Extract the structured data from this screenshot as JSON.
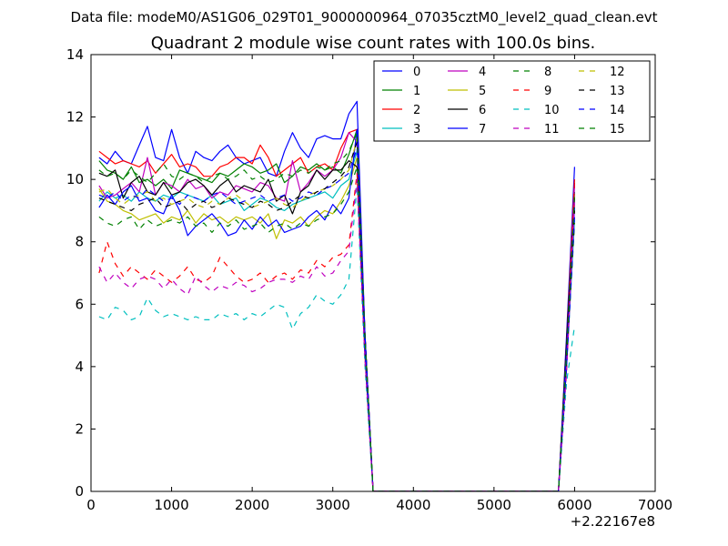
{
  "chart_data": {
    "type": "line",
    "suptitle": "Data file: modeM0/AS1G06_029T01_9000000964_07035cztM0_level2_quad_clean.evt",
    "title": "Quadrant 2 module wise count rates with 100.0s bins.",
    "xlabel": "",
    "ylabel": "",
    "x_offset_label": "+2.22167e8",
    "xlim": [
      0,
      7000
    ],
    "ylim": [
      0,
      14
    ],
    "xticks": [
      0,
      1000,
      2000,
      3000,
      4000,
      5000,
      6000,
      7000
    ],
    "yticks": [
      0,
      2,
      4,
      6,
      8,
      10,
      12,
      14
    ],
    "x_tick_labels": [
      "0",
      "1000",
      "2000",
      "3000",
      "4000",
      "5000",
      "6000",
      "7000"
    ],
    "y_tick_labels": [
      "0",
      "2",
      "4",
      "6",
      "8",
      "10",
      "12",
      "14"
    ],
    "grid": false,
    "legend_position": "top-right",
    "legend_columns": 4,
    "x": [
      100,
      200,
      300,
      400,
      500,
      600,
      700,
      800,
      900,
      1000,
      1100,
      1200,
      1300,
      1400,
      1500,
      1600,
      1700,
      1800,
      1900,
      2000,
      2100,
      2200,
      2300,
      2400,
      2500,
      2600,
      2700,
      2800,
      2900,
      3000,
      3100,
      3200,
      3300,
      3400,
      3500,
      3600,
      3700,
      3800,
      3900,
      4000,
      4100,
      4200,
      4300,
      4400,
      4500,
      4600,
      4700,
      4800,
      4900,
      5000,
      5100,
      5200,
      5300,
      5400,
      5500,
      5600,
      5700,
      5800,
      5900,
      6000
    ],
    "series": [
      {
        "name": "0",
        "color": "#0000ff",
        "dash": "solid",
        "values": [
          10.7,
          10.5,
          10.9,
          10.6,
          10.5,
          11.1,
          11.7,
          10.7,
          10.6,
          11.6,
          10.7,
          10.2,
          10.9,
          10.7,
          10.6,
          10.9,
          11.1,
          10.7,
          10.5,
          10.6,
          10.7,
          10.2,
          10.1,
          10.9,
          11.5,
          11.0,
          10.7,
          11.3,
          11.4,
          11.3,
          11.3,
          12.1,
          12.5,
          5.0,
          0,
          0,
          0,
          0,
          0,
          0,
          0,
          0,
          0,
          0,
          0,
          0,
          0,
          0,
          0,
          0,
          0,
          0,
          0,
          0,
          0,
          0,
          0,
          0,
          5.0,
          10.4
        ]
      },
      {
        "name": "1",
        "color": "#008000",
        "dash": "solid",
        "values": [
          10.6,
          10.3,
          10.2,
          10.0,
          10.4,
          9.9,
          10.0,
          9.8,
          10.0,
          9.7,
          10.3,
          10.2,
          10.1,
          10.0,
          9.9,
          10.2,
          10.1,
          10.3,
          10.5,
          10.4,
          10.2,
          10.3,
          10.5,
          9.9,
          10.1,
          10.4,
          10.3,
          10.5,
          10.3,
          10.4,
          10.2,
          10.8,
          11.6,
          5.0,
          0,
          0,
          0,
          0,
          0,
          0,
          0,
          0,
          0,
          0,
          0,
          0,
          0,
          0,
          0,
          0,
          0,
          0,
          0,
          0,
          0,
          0,
          0,
          0,
          4.5,
          9.6
        ]
      },
      {
        "name": "2",
        "color": "#ff0000",
        "dash": "solid",
        "values": [
          10.9,
          10.7,
          10.5,
          10.6,
          10.5,
          10.4,
          10.6,
          10.2,
          10.5,
          10.8,
          10.4,
          10.5,
          10.4,
          10.1,
          10.1,
          10.4,
          10.5,
          10.7,
          10.7,
          10.5,
          11.1,
          10.7,
          10.1,
          10.3,
          10.5,
          10.7,
          10.2,
          10.4,
          10.5,
          10.3,
          11.0,
          11.5,
          11.6,
          5.0,
          0,
          0,
          0,
          0,
          0,
          0,
          0,
          0,
          0,
          0,
          0,
          0,
          0,
          0,
          0,
          0,
          0,
          0,
          0,
          0,
          0,
          0,
          0,
          0,
          4.8,
          10.0
        ]
      },
      {
        "name": "3",
        "color": "#00bfbf",
        "dash": "solid",
        "values": [
          9.3,
          9.6,
          9.4,
          9.5,
          9.3,
          9.6,
          9.4,
          9.3,
          9.5,
          9.4,
          9.6,
          9.5,
          9.4,
          9.3,
          9.5,
          9.2,
          9.3,
          9.4,
          9.0,
          9.2,
          9.4,
          9.3,
          9.1,
          9.0,
          9.2,
          9.3,
          9.4,
          9.5,
          9.6,
          9.4,
          9.8,
          10.0,
          10.9,
          4.5,
          0,
          0,
          0,
          0,
          0,
          0,
          0,
          0,
          0,
          0,
          0,
          0,
          0,
          0,
          0,
          0,
          0,
          0,
          0,
          0,
          0,
          0,
          0,
          0,
          4.0,
          8.7
        ]
      },
      {
        "name": "4",
        "color": "#bf00bf",
        "dash": "solid",
        "values": [
          9.8,
          9.4,
          9.5,
          9.7,
          9.9,
          9.6,
          10.7,
          9.5,
          9.9,
          9.8,
          9.6,
          10.0,
          9.7,
          9.8,
          9.4,
          9.6,
          9.5,
          9.8,
          9.7,
          9.6,
          9.9,
          9.8,
          9.4,
          9.3,
          10.6,
          9.6,
          9.9,
          10.3,
          10.1,
          10.3,
          10.7,
          11.5,
          11.2,
          5.0,
          0,
          0,
          0,
          0,
          0,
          0,
          0,
          0,
          0,
          0,
          0,
          0,
          0,
          0,
          0,
          0,
          0,
          0,
          0,
          0,
          0,
          0,
          0,
          0,
          4.7,
          9.8
        ]
      },
      {
        "name": "5",
        "color": "#bfbf00",
        "dash": "solid",
        "values": [
          9.7,
          9.3,
          9.2,
          9.0,
          8.9,
          8.7,
          8.8,
          8.9,
          8.6,
          8.8,
          8.7,
          9.0,
          8.6,
          8.9,
          8.7,
          8.8,
          8.6,
          8.8,
          8.7,
          8.8,
          8.6,
          8.9,
          8.1,
          8.7,
          8.6,
          8.8,
          8.5,
          8.8,
          9.0,
          8.9,
          9.3,
          9.8,
          10.7,
          4.8,
          0,
          0,
          0,
          0,
          0,
          0,
          0,
          0,
          0,
          0,
          0,
          0,
          0,
          0,
          0,
          0,
          0,
          0,
          0,
          0,
          0,
          0,
          0,
          0,
          4.2,
          9.2
        ]
      },
      {
        "name": "6",
        "color": "#000000",
        "dash": "solid",
        "values": [
          10.2,
          10.1,
          10.3,
          9.4,
          9.9,
          10.1,
          9.6,
          9.5,
          9.9,
          9.5,
          9.6,
          9.9,
          10.0,
          9.8,
          9.5,
          9.8,
          10.0,
          9.6,
          9.8,
          9.7,
          9.6,
          10.0,
          9.3,
          9.5,
          8.9,
          9.6,
          9.8,
          10.3,
          10.0,
          10.3,
          10.3,
          10.6,
          10.4,
          5.0,
          0,
          0,
          0,
          0,
          0,
          0,
          0,
          0,
          0,
          0,
          0,
          0,
          0,
          0,
          0,
          0,
          0,
          0,
          0,
          0,
          0,
          0,
          0,
          0,
          4.8,
          9.4
        ]
      },
      {
        "name": "7",
        "color": "#0000ff",
        "dash": "solid",
        "values": [
          9.1,
          9.5,
          9.2,
          9.6,
          9.8,
          9.3,
          9.4,
          9.0,
          8.9,
          9.5,
          9.0,
          8.2,
          8.5,
          8.7,
          8.9,
          8.6,
          8.2,
          8.3,
          8.7,
          8.4,
          8.8,
          8.5,
          8.7,
          8.3,
          8.4,
          8.5,
          8.8,
          9.0,
          8.7,
          9.2,
          8.9,
          9.4,
          11.6,
          5.0,
          0,
          0,
          0,
          0,
          0,
          0,
          0,
          0,
          0,
          0,
          0,
          0,
          0,
          0,
          0,
          0,
          0,
          0,
          0,
          0,
          0,
          0,
          0,
          0,
          4.5,
          9.1
        ]
      },
      {
        "name": "8",
        "color": "#008000",
        "dash": "dashed",
        "values": [
          8.8,
          8.6,
          8.5,
          8.7,
          8.8,
          8.4,
          8.7,
          8.5,
          8.6,
          8.7,
          8.6,
          8.8,
          8.5,
          8.6,
          8.3,
          8.6,
          8.5,
          8.7,
          8.4,
          8.5,
          8.6,
          8.3,
          8.5,
          8.6,
          8.4,
          8.6,
          8.5,
          8.7,
          8.8,
          8.9,
          9.2,
          9.6,
          10.4,
          4.6,
          0,
          0,
          0,
          0,
          0,
          0,
          0,
          0,
          0,
          0,
          0,
          0,
          0,
          0,
          0,
          0,
          0,
          0,
          0,
          0,
          0,
          0,
          0,
          0,
          4.1,
          8.6
        ]
      },
      {
        "name": "9",
        "color": "#ff0000",
        "dash": "dashed",
        "values": [
          7.0,
          8.0,
          7.3,
          6.9,
          7.2,
          7.0,
          6.8,
          7.1,
          6.9,
          6.7,
          6.9,
          7.2,
          6.8,
          6.7,
          6.9,
          7.5,
          7.2,
          6.9,
          6.7,
          6.8,
          7.0,
          6.7,
          6.9,
          7.0,
          6.8,
          7.1,
          7.0,
          7.4,
          7.2,
          7.5,
          7.6,
          7.9,
          10.2,
          4.3,
          0,
          0,
          0,
          0,
          0,
          0,
          0,
          0,
          0,
          0,
          0,
          0,
          0,
          0,
          0,
          0,
          0,
          0,
          0,
          0,
          0,
          0,
          0,
          0,
          4.0,
          9.9
        ]
      },
      {
        "name": "10",
        "color": "#00bfbf",
        "dash": "dashed",
        "values": [
          5.6,
          5.5,
          5.9,
          5.8,
          5.5,
          5.6,
          6.2,
          5.8,
          5.6,
          5.7,
          5.6,
          5.5,
          5.6,
          5.5,
          5.5,
          5.7,
          5.6,
          5.7,
          5.5,
          5.7,
          5.6,
          5.8,
          6.0,
          5.9,
          5.2,
          5.7,
          5.9,
          6.3,
          6.1,
          6.0,
          6.3,
          6.8,
          9.8,
          4.0,
          0,
          0,
          0,
          0,
          0,
          0,
          0,
          0,
          0,
          0,
          0,
          0,
          0,
          0,
          0,
          0,
          0,
          0,
          0,
          0,
          0,
          0,
          0,
          0,
          3.5,
          5.3
        ]
      },
      {
        "name": "11",
        "color": "#bf00bf",
        "dash": "dashed",
        "values": [
          7.2,
          6.7,
          7.0,
          6.7,
          6.5,
          6.8,
          6.9,
          6.8,
          6.5,
          6.8,
          6.5,
          6.3,
          6.9,
          6.6,
          6.4,
          6.6,
          6.5,
          6.7,
          6.6,
          6.4,
          6.5,
          6.7,
          6.8,
          6.8,
          6.7,
          6.9,
          6.8,
          7.2,
          6.9,
          7.0,
          7.4,
          7.7,
          10.0,
          4.2,
          0,
          0,
          0,
          0,
          0,
          0,
          0,
          0,
          0,
          0,
          0,
          0,
          0,
          0,
          0,
          0,
          0,
          0,
          0,
          0,
          0,
          0,
          0,
          0,
          3.8,
          9.3
        ]
      },
      {
        "name": "12",
        "color": "#bfbf00",
        "dash": "dashed",
        "values": [
          9.6,
          9.7,
          9.4,
          9.2,
          9.4,
          9.5,
          9.6,
          9.3,
          9.4,
          9.2,
          9.3,
          9.4,
          9.2,
          9.1,
          9.3,
          9.2,
          9.4,
          9.5,
          9.3,
          9.1,
          9.2,
          9.3,
          9.4,
          9.2,
          9.1,
          9.3,
          9.5,
          9.6,
          9.7,
          9.8,
          10.0,
          10.3,
          11.3,
          4.8,
          0,
          0,
          0,
          0,
          0,
          0,
          0,
          0,
          0,
          0,
          0,
          0,
          0,
          0,
          0,
          0,
          0,
          0,
          0,
          0,
          0,
          0,
          0,
          0,
          4.3,
          9.0
        ]
      },
      {
        "name": "13",
        "color": "#000000",
        "dash": "dashed",
        "values": [
          9.4,
          9.3,
          9.2,
          9.1,
          9.0,
          9.2,
          9.3,
          9.4,
          9.1,
          9.2,
          9.3,
          9.0,
          9.2,
          9.3,
          9.1,
          9.2,
          9.4,
          9.3,
          9.2,
          9.1,
          9.3,
          9.2,
          9.0,
          9.1,
          9.3,
          9.5,
          9.4,
          9.6,
          9.7,
          9.9,
          10.1,
          10.4,
          11.2,
          4.7,
          0,
          0,
          0,
          0,
          0,
          0,
          0,
          0,
          0,
          0,
          0,
          0,
          0,
          0,
          0,
          0,
          0,
          0,
          0,
          0,
          0,
          0,
          0,
          0,
          4.2,
          9.0
        ]
      },
      {
        "name": "14",
        "color": "#0000ff",
        "dash": "dashed",
        "values": [
          9.5,
          9.4,
          9.6,
          9.3,
          9.5,
          9.4,
          9.7,
          9.5,
          9.3,
          9.4,
          9.2,
          9.5,
          9.4,
          9.3,
          9.5,
          9.6,
          9.4,
          9.2,
          9.3,
          9.4,
          9.5,
          9.3,
          9.4,
          9.5,
          9.3,
          9.4,
          9.6,
          9.5,
          9.7,
          9.8,
          10.0,
          10.2,
          11.0,
          4.5,
          0,
          0,
          0,
          0,
          0,
          0,
          0,
          0,
          0,
          0,
          0,
          0,
          0,
          0,
          0,
          0,
          0,
          0,
          0,
          0,
          0,
          0,
          0,
          0,
          4.0,
          8.8
        ]
      },
      {
        "name": "15",
        "color": "#008000",
        "dash": "dashed",
        "values": [
          10.3,
          10.1,
          10.2,
          10.0,
          10.3,
          10.1,
          9.9,
          10.2,
          10.5,
          10.1,
          10.0,
          10.2,
          10.1,
          9.9,
          10.1,
          10.2,
          10.0,
          10.1,
          10.3,
          10.0,
          10.1,
          9.9,
          10.0,
          10.2,
          10.1,
          10.3,
          10.2,
          10.4,
          10.3,
          10.5,
          10.6,
          10.9,
          11.5,
          4.9,
          0,
          0,
          0,
          0,
          0,
          0,
          0,
          0,
          0,
          0,
          0,
          0,
          0,
          0,
          0,
          0,
          0,
          0,
          0,
          0,
          0,
          0,
          0,
          0,
          4.4,
          9.5
        ]
      }
    ]
  }
}
